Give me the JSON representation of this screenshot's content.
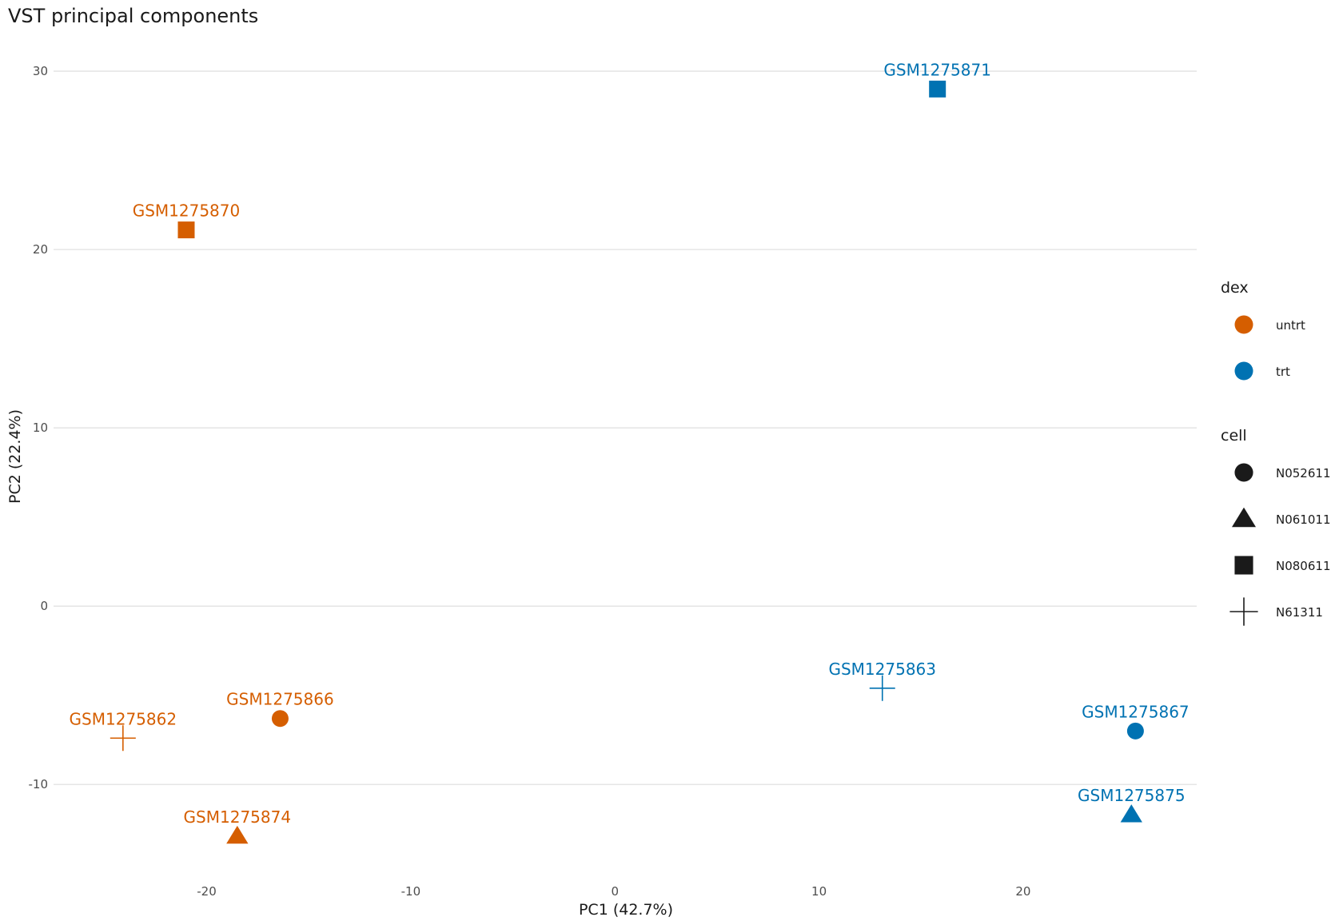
{
  "chart_data": {
    "type": "scatter",
    "title": "VST principal components",
    "xlabel": "PC1 (42.7%)",
    "ylabel": "PC2 (22.4%)",
    "xlim": [
      -27.5,
      28.5
    ],
    "ylim": [
      -15.1,
      32.2
    ],
    "xticks": [
      -20,
      -10,
      0,
      10,
      20
    ],
    "yticks": [
      -10,
      0,
      10,
      20,
      30
    ],
    "grid": true,
    "legend_position": "right",
    "colors": {
      "untrt": "#D55E00",
      "trt": "#0072B2"
    },
    "points": [
      {
        "label": "GSM1275870",
        "x": -21.0,
        "y": 21.1,
        "dex": "untrt",
        "cell": "N080611"
      },
      {
        "label": "GSM1275871",
        "x": 15.8,
        "y": 29.0,
        "dex": "trt",
        "cell": "N080611"
      },
      {
        "label": "GSM1275866",
        "x": -16.4,
        "y": -6.3,
        "dex": "untrt",
        "cell": "N052611"
      },
      {
        "label": "GSM1275862",
        "x": -24.1,
        "y": -7.4,
        "dex": "untrt",
        "cell": "N61311"
      },
      {
        "label": "GSM1275874",
        "x": -18.5,
        "y": -12.9,
        "dex": "untrt",
        "cell": "N061011"
      },
      {
        "label": "GSM1275863",
        "x": 13.1,
        "y": -4.6,
        "dex": "trt",
        "cell": "N61311"
      },
      {
        "label": "GSM1275867",
        "x": 25.5,
        "y": -7.0,
        "dex": "trt",
        "cell": "N052611"
      },
      {
        "label": "GSM1275875",
        "x": 25.3,
        "y": -11.7,
        "dex": "trt",
        "cell": "N061011"
      }
    ],
    "legend": {
      "color_title": "dex",
      "color_entries": [
        "untrt",
        "trt"
      ],
      "shape_title": "cell",
      "shape_entries": [
        {
          "label": "N052611",
          "shape": "circle"
        },
        {
          "label": "N061011",
          "shape": "triangle"
        },
        {
          "label": "N080611",
          "shape": "square"
        },
        {
          "label": "N61311",
          "shape": "plus"
        }
      ]
    }
  }
}
